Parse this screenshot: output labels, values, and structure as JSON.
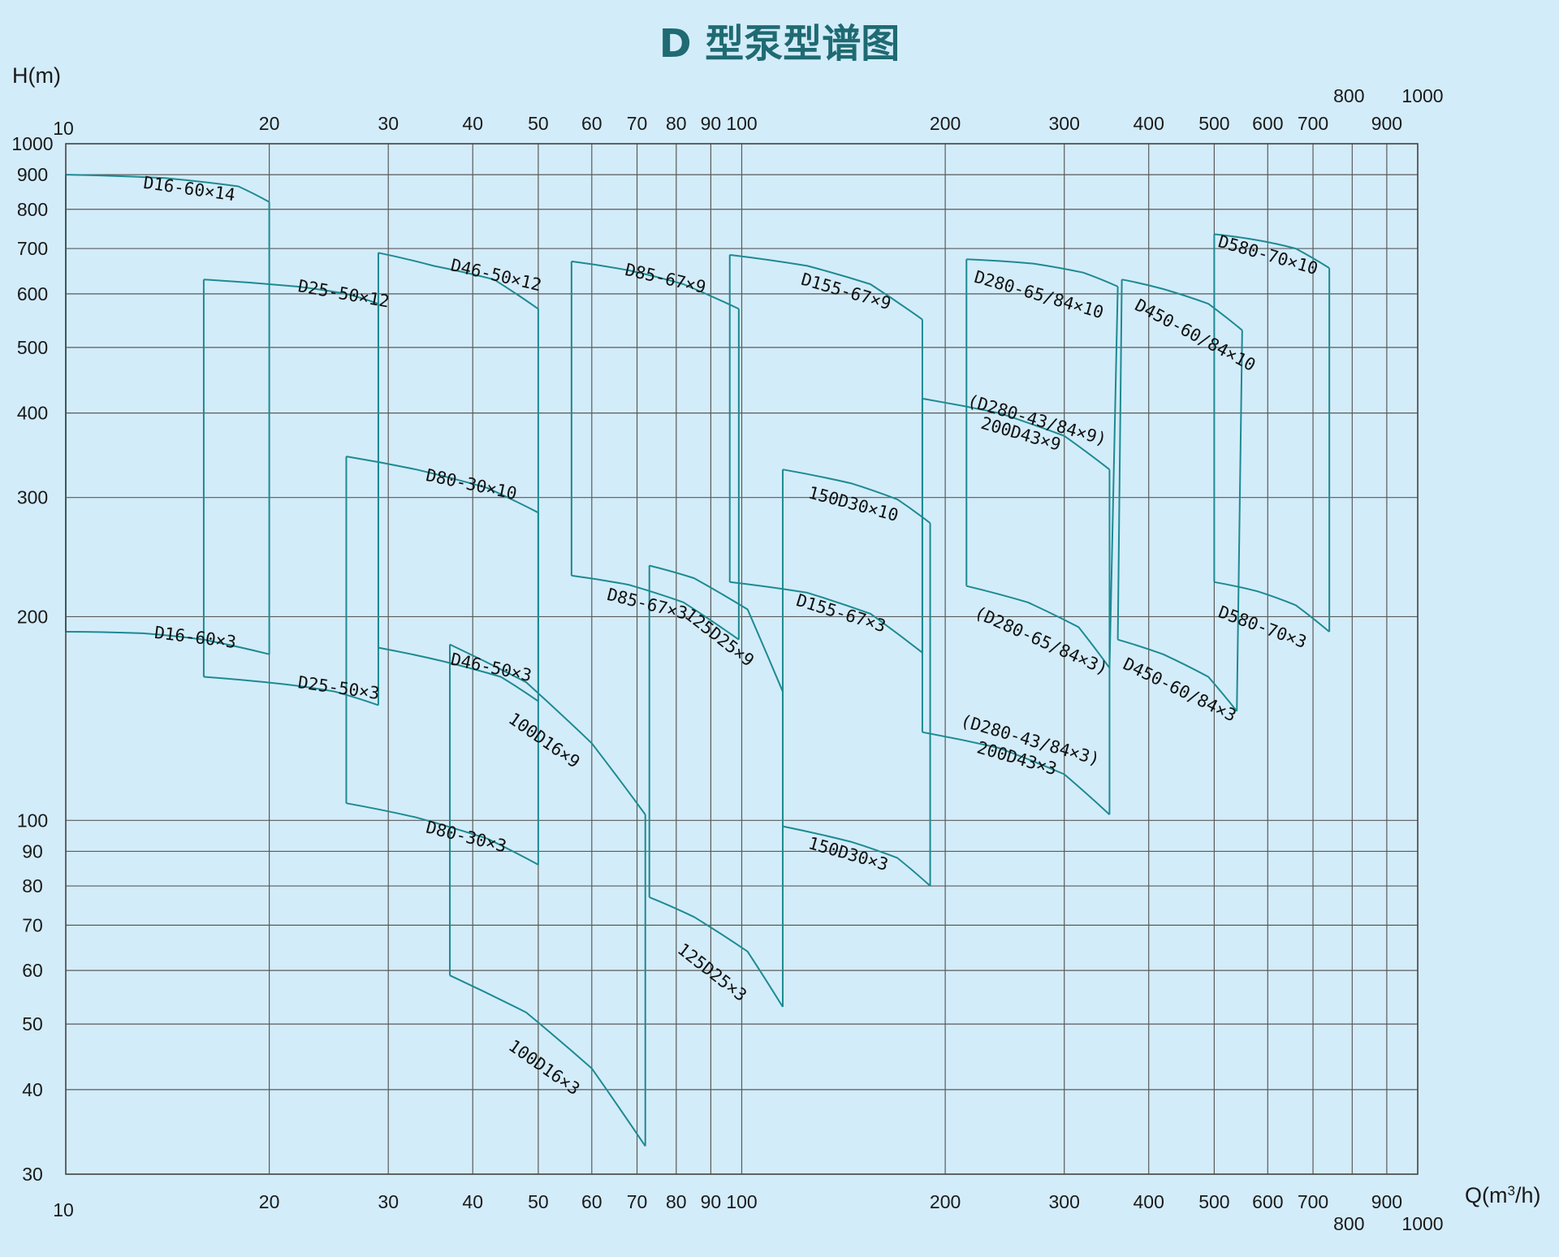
{
  "chart_data": {
    "type": "line",
    "title": "D 型泵型谱图",
    "ylabel": "H(m)",
    "xlabel_prefix": "Q(m",
    "xlabel_sup": "3",
    "xlabel_suffix": "/h)",
    "x_scale": "log",
    "y_scale": "log",
    "xlim": [
      10,
      1000
    ],
    "ylim": [
      30,
      1000
    ],
    "grid": true,
    "x_grid": [
      10,
      20,
      30,
      40,
      50,
      60,
      70,
      80,
      90,
      100,
      200,
      300,
      400,
      500,
      600,
      700,
      800,
      900,
      1000
    ],
    "y_grid": [
      30,
      40,
      50,
      60,
      70,
      80,
      90,
      100,
      200,
      300,
      400,
      500,
      600,
      700,
      800,
      900,
      1000
    ],
    "x_ticks": [
      "10",
      "20",
      "30",
      "40",
      "50",
      "60",
      "70",
      "80",
      "90",
      "100",
      "200",
      "300",
      "400",
      "500",
      "600",
      "700",
      "800",
      "900",
      "1000"
    ],
    "y_ticks": [
      "30",
      "40",
      "50",
      "60",
      "70",
      "80",
      "90",
      "100",
      "200",
      "300",
      "400",
      "500",
      "600",
      "700",
      "800",
      "900",
      "1000"
    ],
    "regions": [
      {
        "label": "D16-60×14",
        "top": [
          [
            10,
            900
          ],
          [
            14,
            890
          ],
          [
            18,
            865
          ],
          [
            20,
            820
          ]
        ]
      },
      {
        "label": "D16-60×3",
        "top": [
          [
            10,
            190
          ],
          [
            13,
            189
          ],
          [
            16,
            185
          ],
          [
            20,
            176
          ]
        ]
      },
      {
        "label": "D25-50×12",
        "top": [
          [
            16,
            630
          ],
          [
            22,
            615
          ],
          [
            26,
            600
          ],
          [
            29,
            580
          ]
        ]
      },
      {
        "label": "D25-50×3",
        "top": [
          [
            16,
            163
          ],
          [
            21,
            159
          ],
          [
            25,
            155
          ],
          [
            29,
            148
          ]
        ]
      },
      {
        "label": "D46-50×12",
        "top": [
          [
            29,
            690
          ],
          [
            35,
            660
          ],
          [
            43,
            630
          ],
          [
            50,
            570
          ]
        ]
      },
      {
        "label": "D46-50×3",
        "top": [
          [
            29,
            180
          ],
          [
            36,
            172
          ],
          [
            44,
            163
          ],
          [
            50,
            150
          ]
        ]
      },
      {
        "label": "D80-30×10",
        "top": [
          [
            26,
            345
          ],
          [
            33,
            330
          ],
          [
            42,
            310
          ],
          [
            50,
            285
          ]
        ]
      },
      {
        "label": "D80-30×3",
        "top": [
          [
            26,
            106
          ],
          [
            33,
            101
          ],
          [
            42,
            94
          ],
          [
            50,
            86
          ]
        ]
      },
      {
        "label": "D85-67×9",
        "top": [
          [
            56,
            670
          ],
          [
            68,
            650
          ],
          [
            82,
            620
          ],
          [
            99,
            570
          ]
        ]
      },
      {
        "label": "D85-67×3",
        "top": [
          [
            56,
            230
          ],
          [
            68,
            223
          ],
          [
            82,
            210
          ],
          [
            99,
            185
          ]
        ]
      },
      {
        "label": "125D25×9",
        "top": [
          [
            73,
            238
          ],
          [
            85,
            228
          ],
          [
            102,
            205
          ],
          [
            115,
            155
          ]
        ]
      },
      {
        "label": "125D25×3",
        "top": [
          [
            73,
            77
          ],
          [
            85,
            72
          ],
          [
            102,
            64
          ],
          [
            115,
            53
          ]
        ]
      },
      {
        "label": "100D16×9",
        "top": [
          [
            37,
            182
          ],
          [
            48,
            160
          ],
          [
            60,
            130
          ],
          [
            72,
            102
          ]
        ]
      },
      {
        "label": "100D16×3",
        "top": [
          [
            37,
            59
          ],
          [
            48,
            52
          ],
          [
            60,
            43
          ],
          [
            72,
            33
          ]
        ]
      },
      {
        "label": "D155-67×9",
        "top": [
          [
            96,
            685
          ],
          [
            125,
            660
          ],
          [
            155,
            620
          ],
          [
            185,
            550
          ]
        ]
      },
      {
        "label": "D155-67×3",
        "top": [
          [
            96,
            225
          ],
          [
            125,
            217
          ],
          [
            155,
            202
          ],
          [
            185,
            177
          ]
        ]
      },
      {
        "label": "150D30×10",
        "top": [
          [
            115,
            330
          ],
          [
            145,
            315
          ],
          [
            170,
            298
          ],
          [
            190,
            275
          ]
        ]
      },
      {
        "label": "150D30×3",
        "top": [
          [
            115,
            98
          ],
          [
            145,
            93
          ],
          [
            170,
            88
          ],
          [
            190,
            80
          ]
        ]
      },
      {
        "label": "D280-65/84×10",
        "top": [
          [
            215,
            675
          ],
          [
            270,
            665
          ],
          [
            320,
            645
          ],
          [
            360,
            615
          ]
        ]
      },
      {
        "label": "(D280-65/84×3)",
        "top": [
          [
            215,
            222
          ],
          [
            265,
            210
          ],
          [
            315,
            193
          ],
          [
            350,
            168
          ]
        ]
      },
      {
        "label": "(D280-43/84×9)",
        "top": [
          [
            185,
            420
          ],
          [
            240,
            400
          ],
          [
            300,
            370
          ],
          [
            350,
            330
          ]
        ]
      },
      {
        "label": "200D43×9",
        "top": []
      },
      {
        "label": "(D280-43/84×3)",
        "top": [
          [
            185,
            135
          ],
          [
            240,
            128
          ],
          [
            300,
            117
          ],
          [
            350,
            102
          ]
        ]
      },
      {
        "label": "200D43×3",
        "top": []
      },
      {
        "label": "D450-60/84×10",
        "top": [
          [
            365,
            630
          ],
          [
            420,
            610
          ],
          [
            490,
            580
          ],
          [
            550,
            530
          ]
        ]
      },
      {
        "label": "D450-60/84×3",
        "top": [
          [
            360,
            185
          ],
          [
            420,
            176
          ],
          [
            490,
            163
          ],
          [
            540,
            145
          ]
        ]
      },
      {
        "label": "D580-70×10",
        "top": [
          [
            500,
            735
          ],
          [
            580,
            720
          ],
          [
            660,
            700
          ],
          [
            740,
            655
          ]
        ]
      },
      {
        "label": "D580-70×3",
        "top": [
          [
            500,
            225
          ],
          [
            580,
            218
          ],
          [
            660,
            208
          ],
          [
            740,
            190
          ]
        ]
      }
    ]
  },
  "labels": {
    "x_top_800": "800",
    "x_top_1000": "1000",
    "x_bot_800": "800",
    "x_bot_1000": "1000"
  }
}
